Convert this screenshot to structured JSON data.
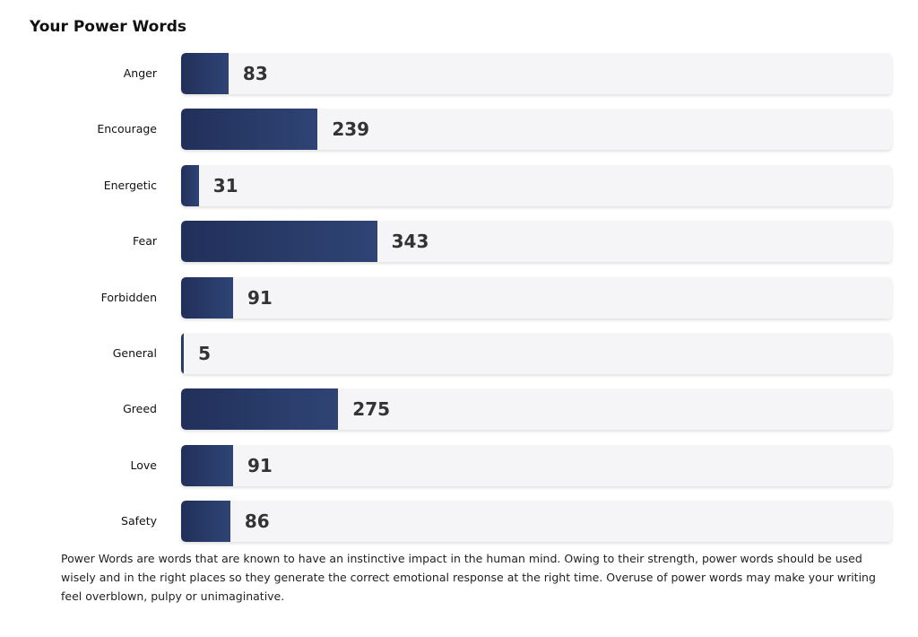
{
  "chart_data": {
    "type": "bar",
    "orientation": "horizontal",
    "title": "Your Power Words",
    "categories": [
      "Anger",
      "Encourage",
      "Energetic",
      "Fear",
      "Forbidden",
      "General",
      "Greed",
      "Love",
      "Safety"
    ],
    "values": [
      83,
      239,
      31,
      343,
      91,
      5,
      275,
      91,
      86
    ],
    "xlim": [
      0,
      1244
    ],
    "xlabel": "",
    "ylabel": "",
    "grid": false,
    "colors": {
      "bar_start": "#21305a",
      "bar_end": "#2f4475",
      "track": "#f5f5f8"
    }
  },
  "description": "Power Words are words that are known to have an instinctive impact in the human mind. Owing to their strength, power words should be used wisely and in the right places so they generate the correct emotional response at the right time. Overuse of power words may make your writing feel overblown, pulpy or unimaginative."
}
